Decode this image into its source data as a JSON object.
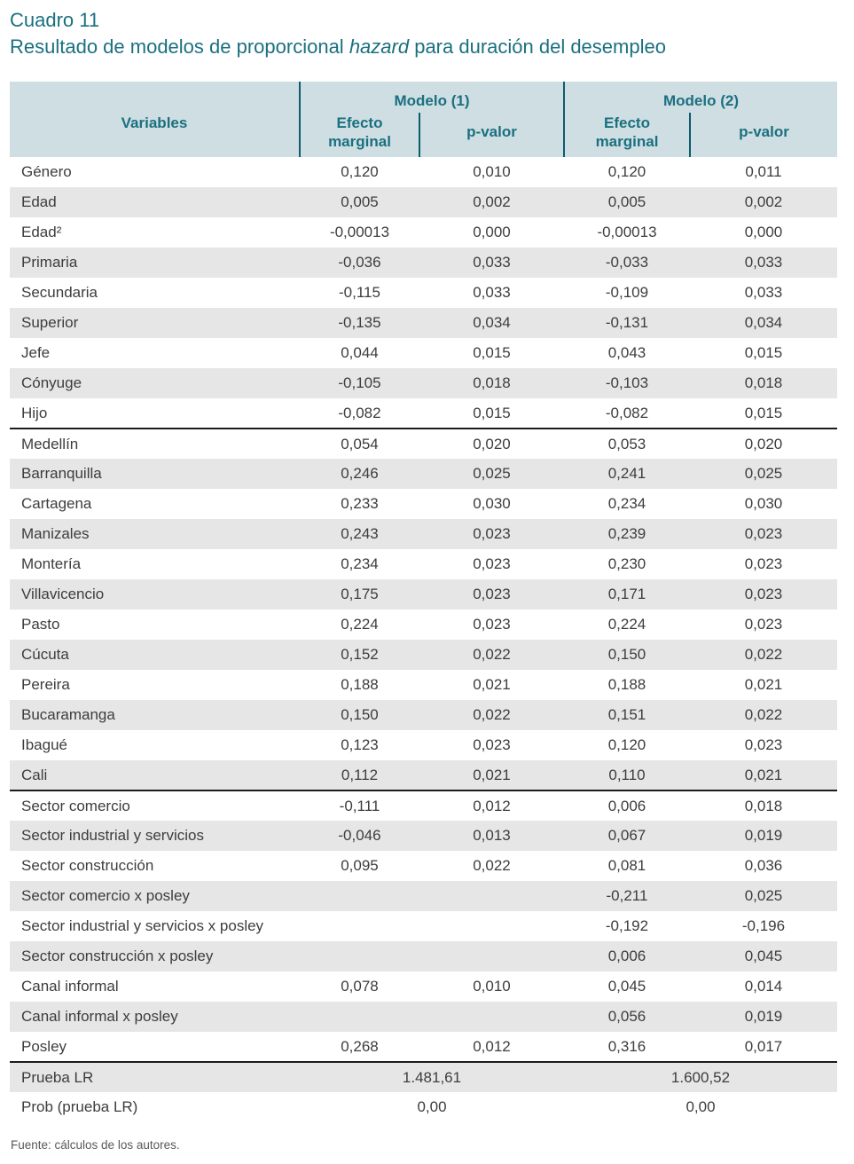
{
  "title": {
    "line1": "Cuadro 11",
    "line2_before": "Resultado de modelos de proporcional ",
    "line2_italic": "hazard",
    "line2_after": " para duración del desempleo"
  },
  "colors": {
    "teal_text": "#1a7080",
    "teal_divider_line": "#0d5b6d",
    "header_background": "#cfdee2",
    "stripe_background": "#e6e6e6",
    "section_divider": "#1c1c1c",
    "body_text": "#3d3d3d",
    "source_text": "#58595b"
  },
  "table": {
    "header": {
      "variables": "Variables",
      "model1": "Modelo (1)",
      "model2": "Modelo (2)",
      "effect_marginal": "Efecto\nmarginal",
      "p_value": "p-valor"
    },
    "columns": [
      "Variables",
      "Modelo (1) Efecto marginal",
      "Modelo (1) p-valor",
      "Modelo (2) Efecto marginal",
      "Modelo (2) p-valor"
    ],
    "sections": [
      {
        "name": "caracteristicas-individuales",
        "rows": [
          {
            "label": "Género",
            "m1_em": "0,120",
            "m1_p": "0,010",
            "m2_em": "0,120",
            "m2_p": "0,011"
          },
          {
            "label": "Edad",
            "m1_em": "0,005",
            "m1_p": "0,002",
            "m2_em": "0,005",
            "m2_p": "0,002"
          },
          {
            "label": "Edad²",
            "m1_em": "-0,00013",
            "m1_p": "0,000",
            "m2_em": "-0,00013",
            "m2_p": "0,000"
          },
          {
            "label": "Primaria",
            "m1_em": "-0,036",
            "m1_p": "0,033",
            "m2_em": "-0,033",
            "m2_p": "0,033"
          },
          {
            "label": "Secundaria",
            "m1_em": "-0,115",
            "m1_p": "0,033",
            "m2_em": "-0,109",
            "m2_p": "0,033"
          },
          {
            "label": "Superior",
            "m1_em": "-0,135",
            "m1_p": "0,034",
            "m2_em": "-0,131",
            "m2_p": "0,034"
          },
          {
            "label": "Jefe",
            "m1_em": "0,044",
            "m1_p": "0,015",
            "m2_em": "0,043",
            "m2_p": "0,015"
          },
          {
            "label": "Cónyuge",
            "m1_em": "-0,105",
            "m1_p": "0,018",
            "m2_em": "-0,103",
            "m2_p": "0,018"
          },
          {
            "label": "Hijo",
            "m1_em": "-0,082",
            "m1_p": "0,015",
            "m2_em": "-0,082",
            "m2_p": "0,015"
          }
        ]
      },
      {
        "name": "ciudades",
        "rows": [
          {
            "label": "Medellín",
            "m1_em": "0,054",
            "m1_p": "0,020",
            "m2_em": "0,053",
            "m2_p": "0,020"
          },
          {
            "label": "Barranquilla",
            "m1_em": "0,246",
            "m1_p": "0,025",
            "m2_em": "0,241",
            "m2_p": "0,025"
          },
          {
            "label": "Cartagena",
            "m1_em": "0,233",
            "m1_p": "0,030",
            "m2_em": "0,234",
            "m2_p": "0,030"
          },
          {
            "label": "Manizales",
            "m1_em": "0,243",
            "m1_p": "0,023",
            "m2_em": "0,239",
            "m2_p": "0,023"
          },
          {
            "label": "Montería",
            "m1_em": "0,234",
            "m1_p": "0,023",
            "m2_em": "0,230",
            "m2_p": "0,023"
          },
          {
            "label": "Villavicencio",
            "m1_em": "0,175",
            "m1_p": "0,023",
            "m2_em": "0,171",
            "m2_p": "0,023"
          },
          {
            "label": "Pasto",
            "m1_em": "0,224",
            "m1_p": "0,023",
            "m2_em": "0,224",
            "m2_p": "0,023"
          },
          {
            "label": "Cúcuta",
            "m1_em": "0,152",
            "m1_p": "0,022",
            "m2_em": "0,150",
            "m2_p": "0,022"
          },
          {
            "label": "Pereira",
            "m1_em": "0,188",
            "m1_p": "0,021",
            "m2_em": "0,188",
            "m2_p": "0,021"
          },
          {
            "label": "Bucaramanga",
            "m1_em": "0,150",
            "m1_p": "0,022",
            "m2_em": "0,151",
            "m2_p": "0,022"
          },
          {
            "label": "Ibagué",
            "m1_em": "0,123",
            "m1_p": "0,023",
            "m2_em": "0,120",
            "m2_p": "0,023"
          },
          {
            "label": "Cali",
            "m1_em": "0,112",
            "m1_p": "0,021",
            "m2_em": "0,110",
            "m2_p": "0,021"
          }
        ]
      },
      {
        "name": "sectores-y-canales",
        "rows": [
          {
            "label": "Sector comercio",
            "m1_em": "-0,111",
            "m1_p": "0,012",
            "m2_em": "0,006",
            "m2_p": "0,018"
          },
          {
            "label": "Sector industrial y servicios",
            "m1_em": "-0,046",
            "m1_p": "0,013",
            "m2_em": "0,067",
            "m2_p": "0,019"
          },
          {
            "label": "Sector construcción",
            "m1_em": "0,095",
            "m1_p": "0,022",
            "m2_em": "0,081",
            "m2_p": "0,036"
          },
          {
            "label": "Sector comercio x posley",
            "m1_em": "",
            "m1_p": "",
            "m2_em": "-0,211",
            "m2_p": "0,025"
          },
          {
            "label": "Sector industrial y servicios x posley",
            "m1_em": "",
            "m1_p": "",
            "m2_em": "-0,192",
            "m2_p": "-0,196"
          },
          {
            "label": "Sector construcción x posley",
            "m1_em": "",
            "m1_p": "",
            "m2_em": "0,006",
            "m2_p": "0,045"
          },
          {
            "label": "Canal informal",
            "m1_em": "0,078",
            "m1_p": "0,010",
            "m2_em": "0,045",
            "m2_p": "0,014"
          },
          {
            "label": "Canal informal x posley",
            "m1_em": "",
            "m1_p": "",
            "m2_em": "0,056",
            "m2_p": "0,019"
          },
          {
            "label": "Posley",
            "m1_em": "0,268",
            "m1_p": "0,012",
            "m2_em": "0,316",
            "m2_p": "0,017"
          }
        ]
      }
    ],
    "summary_rows": [
      {
        "label": "Prueba LR",
        "model1": "1.481,61",
        "model2": "1.600,52",
        "shaded": true
      },
      {
        "label": "Prob (prueba LR)",
        "model1": "0,00",
        "model2": "0,00",
        "shaded": false
      }
    ]
  },
  "source_note": "Fuente: cálculos de los autores."
}
